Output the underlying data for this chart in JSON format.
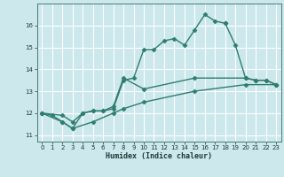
{
  "title": "",
  "xlabel": "Humidex (Indice chaleur)",
  "bg_color": "#cce8ec",
  "grid_color": "#ffffff",
  "line_color": "#2e7d6e",
  "xlim": [
    -0.5,
    23.5
  ],
  "ylim": [
    10.7,
    17.0
  ],
  "yticks": [
    11,
    12,
    13,
    14,
    15,
    16
  ],
  "xticks": [
    0,
    1,
    2,
    3,
    4,
    5,
    6,
    7,
    8,
    9,
    10,
    11,
    12,
    13,
    14,
    15,
    16,
    17,
    18,
    19,
    20,
    21,
    22,
    23
  ],
  "series1_x": [
    0,
    1,
    2,
    3,
    4,
    5,
    6,
    7,
    8,
    9,
    10,
    11,
    12,
    13,
    14,
    15,
    16,
    17,
    18
  ],
  "series1_y": [
    12.0,
    11.9,
    11.6,
    11.3,
    12.0,
    12.1,
    12.1,
    12.2,
    13.5,
    13.6,
    14.9,
    14.9,
    15.3,
    15.4,
    15.1,
    15.8,
    16.5,
    16.2,
    16.1
  ],
  "series2_x": [
    18,
    19,
    20,
    21,
    22,
    23
  ],
  "series2_y": [
    16.1,
    15.1,
    13.6,
    13.5,
    13.5,
    13.3
  ],
  "series3_x": [
    0,
    2,
    3,
    4,
    5,
    6,
    7,
    8,
    10,
    15,
    20,
    21,
    22,
    23
  ],
  "series3_y": [
    12.0,
    11.9,
    11.6,
    12.0,
    12.1,
    12.1,
    12.3,
    13.6,
    13.1,
    13.6,
    13.6,
    13.5,
    13.5,
    13.3
  ],
  "series4_x": [
    0,
    2,
    3,
    5,
    7,
    8,
    10,
    15,
    20,
    23
  ],
  "series4_y": [
    12.0,
    11.6,
    11.3,
    11.6,
    12.0,
    12.2,
    12.5,
    13.0,
    13.3,
    13.3
  ],
  "marker": "D",
  "marker_size": 2.5,
  "line_width": 1.0
}
